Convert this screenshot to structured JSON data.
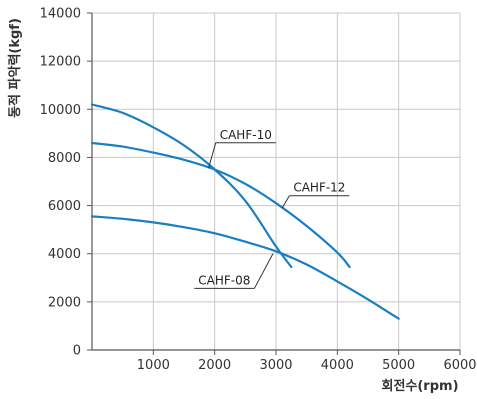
{
  "chart_data": {
    "type": "line",
    "xlabel": "회전수(rpm)",
    "ylabel": "동적 파악력(kgf)",
    "xlim": [
      0,
      6000
    ],
    "ylim": [
      0,
      14000
    ],
    "x_ticks": [
      1000,
      2000,
      3000,
      4000,
      5000,
      6000
    ],
    "y_ticks": [
      0,
      2000,
      4000,
      6000,
      8000,
      10000,
      12000,
      14000
    ],
    "grid": true,
    "line_color": "#1a7fc1",
    "series": [
      {
        "name": "CAHF-10",
        "x": [
          0,
          500,
          1000,
          1500,
          2000,
          2500,
          3000,
          3250
        ],
        "y": [
          10200,
          9850,
          9250,
          8500,
          7500,
          6200,
          4300,
          3450
        ]
      },
      {
        "name": "CAHF-12",
        "x": [
          0,
          500,
          1000,
          1500,
          2000,
          2500,
          3000,
          3500,
          4000,
          4200
        ],
        "y": [
          8600,
          8450,
          8200,
          7900,
          7500,
          6900,
          6100,
          5150,
          4050,
          3450
        ]
      },
      {
        "name": "CAHF-08",
        "x": [
          0,
          500,
          1000,
          1500,
          2000,
          2500,
          3000,
          3500,
          4000,
          4500,
          5000
        ],
        "y": [
          5550,
          5450,
          5300,
          5100,
          4850,
          4500,
          4100,
          3550,
          2850,
          2100,
          1300
        ]
      }
    ],
    "annotations": [
      {
        "series": "CAHF-10",
        "text": "CAHF-10",
        "point": [
          1900,
          7550
        ],
        "label_at": [
          2050,
          8650
        ]
      },
      {
        "series": "CAHF-12",
        "text": "CAHF-12",
        "point": [
          3100,
          5900
        ],
        "label_at": [
          3250,
          6450
        ]
      },
      {
        "series": "CAHF-08",
        "text": "CAHF-08",
        "point": [
          2950,
          4000
        ],
        "label_at": [
          1700,
          2600
        ]
      }
    ]
  }
}
